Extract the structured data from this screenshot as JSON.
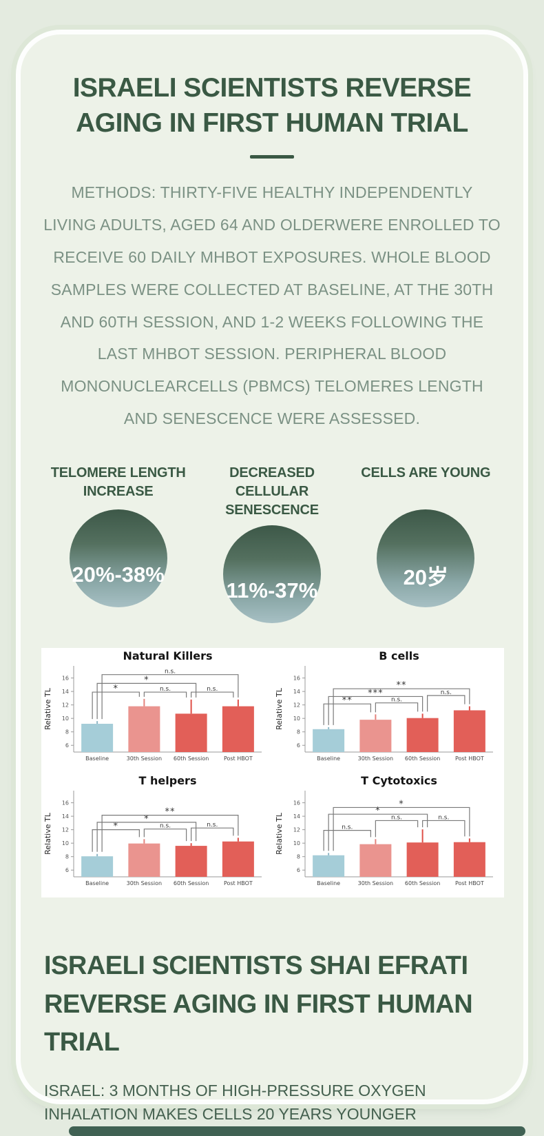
{
  "card": {
    "title": "ISRAELI SCIENTISTS REVERSE AGING IN FIRST HUMAN TRIAL",
    "methods": "METHODS: THIRTY-FIVE HEALTHY INDEPENDENTLY LIVING ADULTS, AGED 64 AND OLDERWERE ENROLLED TO RECEIVE 60 DAILY MHBOT EXPOSURES. WHOLE BLOOD SAMPLES WERE COLLECTED AT BASELINE, AT THE 30TH AND 60TH SESSION, AND 1-2 WEEKS FOLLOWING THE LAST MHBOT SESSION. PERIPHERAL BLOOD MONONUCLEARCELLS (PBMCS) TELOMERES LENGTH AND SENESCENCE WERE ASSESSED.",
    "stats": [
      {
        "label": "TELOMERE LENGTH INCREASE",
        "value": "20%-38%"
      },
      {
        "label": "DECREASED CELLULAR SENESCENCE",
        "value": "11%-37%"
      },
      {
        "label": "CELLS ARE YOUNG",
        "value": "20岁"
      }
    ],
    "footer_title": "ISRAELI SCIENTISTS SHAI EFRATI REVERSE AGING IN FIRST HUMAN TRIAL",
    "footer_subtitle": "ISRAEL: 3 MONTHS OF HIGH-PRESSURE OXYGEN INHALATION MAKES CELLS 20 YEARS YOUNGER"
  },
  "colors": {
    "accent_green": "#3a5944",
    "body_text_green": "#7b9184",
    "circle_gradient_top": "#3d5848",
    "circle_gradient_bottom": "#a7c0c4",
    "panel_white": "#ffffff",
    "bottom_bar_teal": "#406153"
  },
  "chart_data": {
    "type": "bar",
    "layout": "2x2-grid",
    "categories": [
      "Baseline",
      "30th Session",
      "60th Session",
      "Post HBOT"
    ],
    "ylabel": "Relative TL",
    "yticks": [
      6,
      8,
      10,
      12,
      14,
      16
    ],
    "ylim": [
      5,
      17.8
    ],
    "bar_colors": [
      "#a5cdd8",
      "#ea948f",
      "#e25f58",
      "#e25f58"
    ],
    "error_colors": [
      "#8fb7c6",
      "#e4837d",
      "#df4f48",
      "#df4f48"
    ],
    "charts": [
      {
        "title": "Natural Killers",
        "values": [
          9.2,
          11.8,
          10.7,
          11.8
        ],
        "errors": [
          0.4,
          1.1,
          2.1,
          1.0
        ],
        "significance": [
          [
            0,
            1,
            "*",
            13.9
          ],
          [
            1,
            2,
            "n.s.",
            13.9
          ],
          [
            2,
            3,
            "n.s.",
            13.9
          ],
          [
            0,
            2,
            "*",
            15.2
          ],
          [
            0,
            3,
            "n.s.",
            16.5
          ]
        ]
      },
      {
        "title": "B cells",
        "values": [
          8.4,
          9.8,
          10.05,
          11.2
        ],
        "errors": [
          0.3,
          0.8,
          0.65,
          0.6
        ],
        "significance": [
          [
            0,
            1,
            "**",
            12.15
          ],
          [
            1,
            2,
            "n.s.",
            12.3
          ],
          [
            0,
            2,
            "***",
            13.25
          ],
          [
            2,
            3,
            "n.s.",
            13.4
          ],
          [
            0,
            3,
            "**",
            14.4
          ]
        ]
      },
      {
        "title": "T helpers",
        "values": [
          8.05,
          9.95,
          9.6,
          10.25
        ],
        "errors": [
          0.35,
          0.65,
          0.4,
          0.55
        ],
        "significance": [
          [
            0,
            1,
            "*",
            12.0
          ],
          [
            1,
            2,
            "n.s.",
            12.1
          ],
          [
            2,
            3,
            "n.s.",
            12.25
          ],
          [
            0,
            2,
            "*",
            13.1
          ],
          [
            0,
            3,
            "**",
            14.15
          ]
        ]
      },
      {
        "title": "T Cytotoxics",
        "values": [
          8.2,
          9.85,
          10.1,
          10.15
        ],
        "errors": [
          0.35,
          0.75,
          1.95,
          0.55
        ],
        "significance": [
          [
            0,
            1,
            "n.s.",
            11.9
          ],
          [
            1,
            2,
            "n.s.",
            13.35
          ],
          [
            2,
            3,
            "n.s.",
            13.35
          ],
          [
            0,
            2,
            "*",
            14.3
          ],
          [
            0,
            3,
            "*",
            15.3
          ]
        ]
      }
    ]
  }
}
